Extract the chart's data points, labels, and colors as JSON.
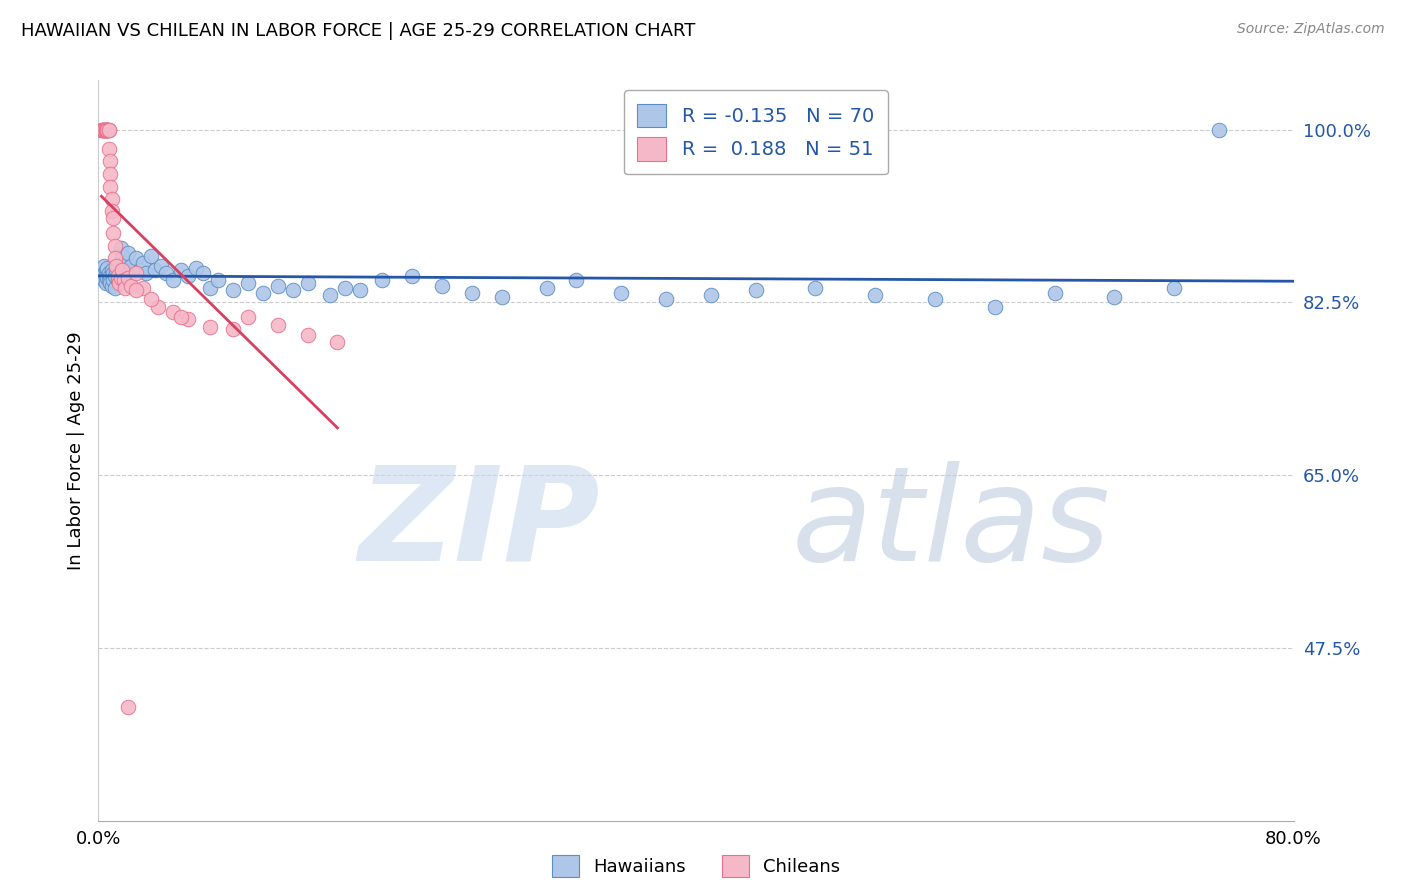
{
  "title": "HAWAIIAN VS CHILEAN IN LABOR FORCE | AGE 25-29 CORRELATION CHART",
  "source": "Source: ZipAtlas.com",
  "ylabel": "In Labor Force | Age 25-29",
  "xlim": [
    0.0,
    0.8
  ],
  "ylim": [
    0.3,
    1.05
  ],
  "ytick_labels": [
    "47.5%",
    "65.0%",
    "82.5%",
    "100.0%"
  ],
  "ytick_values": [
    0.475,
    0.65,
    0.825,
    1.0
  ],
  "xtick_labels": [
    "0.0%",
    "",
    "",
    "",
    "",
    "",
    "",
    "",
    "80.0%"
  ],
  "xtick_values": [
    0.0,
    0.1,
    0.2,
    0.3,
    0.4,
    0.5,
    0.6,
    0.7,
    0.8
  ],
  "legend_hawaiians_R": "-0.135",
  "legend_hawaiians_N": "70",
  "legend_chileans_R": "0.188",
  "legend_chileans_N": "51",
  "hawaiian_color": "#aec6e8",
  "chilean_color": "#f5b8c8",
  "hawaiian_edge_color": "#5b8ec4",
  "chilean_edge_color": "#e8708a",
  "hawaiian_line_color": "#2457a8",
  "chilean_line_color": "#d94060",
  "background_color": "#ffffff",
  "hawaiians_x": [
    0.003,
    0.004,
    0.004,
    0.005,
    0.005,
    0.005,
    0.006,
    0.006,
    0.007,
    0.007,
    0.008,
    0.008,
    0.009,
    0.009,
    0.01,
    0.01,
    0.011,
    0.011,
    0.012,
    0.013,
    0.014,
    0.015,
    0.016,
    0.017,
    0.018,
    0.02,
    0.022,
    0.025,
    0.028,
    0.03,
    0.032,
    0.035,
    0.038,
    0.042,
    0.045,
    0.05,
    0.055,
    0.06,
    0.065,
    0.07,
    0.075,
    0.08,
    0.09,
    0.1,
    0.11,
    0.12,
    0.13,
    0.14,
    0.155,
    0.165,
    0.175,
    0.19,
    0.21,
    0.23,
    0.25,
    0.27,
    0.3,
    0.32,
    0.35,
    0.38,
    0.41,
    0.44,
    0.48,
    0.52,
    0.56,
    0.6,
    0.64,
    0.68,
    0.72,
    0.75
  ],
  "hawaiians_y": [
    0.855,
    0.862,
    0.848,
    0.858,
    0.852,
    0.845,
    0.86,
    0.85,
    0.855,
    0.848,
    0.852,
    0.845,
    0.858,
    0.842,
    0.855,
    0.848,
    0.852,
    0.84,
    0.858,
    0.848,
    0.855,
    0.88,
    0.872,
    0.865,
    0.858,
    0.875,
    0.862,
    0.87,
    0.858,
    0.865,
    0.855,
    0.872,
    0.858,
    0.862,
    0.855,
    0.848,
    0.858,
    0.852,
    0.86,
    0.855,
    0.84,
    0.848,
    0.838,
    0.845,
    0.835,
    0.842,
    0.838,
    0.845,
    0.832,
    0.84,
    0.838,
    0.848,
    0.852,
    0.842,
    0.835,
    0.83,
    0.84,
    0.848,
    0.835,
    0.828,
    0.832,
    0.838,
    0.84,
    0.832,
    0.828,
    0.82,
    0.835,
    0.83,
    0.84,
    1.0
  ],
  "chileans_x": [
    0.002,
    0.003,
    0.003,
    0.003,
    0.004,
    0.004,
    0.004,
    0.005,
    0.005,
    0.005,
    0.005,
    0.006,
    0.006,
    0.006,
    0.006,
    0.007,
    0.007,
    0.007,
    0.008,
    0.008,
    0.008,
    0.009,
    0.009,
    0.01,
    0.01,
    0.011,
    0.011,
    0.012,
    0.013,
    0.014,
    0.015,
    0.016,
    0.017,
    0.018,
    0.02,
    0.022,
    0.025,
    0.03,
    0.04,
    0.05,
    0.06,
    0.075,
    0.09,
    0.1,
    0.12,
    0.14,
    0.16,
    0.025,
    0.035,
    0.055,
    0.02
  ],
  "chileans_y": [
    1.0,
    1.0,
    1.0,
    1.0,
    1.0,
    1.0,
    1.0,
    1.0,
    1.0,
    1.0,
    1.0,
    1.0,
    1.0,
    1.0,
    1.0,
    1.0,
    1.0,
    0.98,
    0.968,
    0.955,
    0.942,
    0.93,
    0.918,
    0.91,
    0.895,
    0.882,
    0.87,
    0.862,
    0.852,
    0.845,
    0.85,
    0.858,
    0.848,
    0.84,
    0.85,
    0.842,
    0.855,
    0.84,
    0.82,
    0.815,
    0.808,
    0.8,
    0.798,
    0.81,
    0.802,
    0.792,
    0.785,
    0.838,
    0.828,
    0.81,
    0.415
  ]
}
